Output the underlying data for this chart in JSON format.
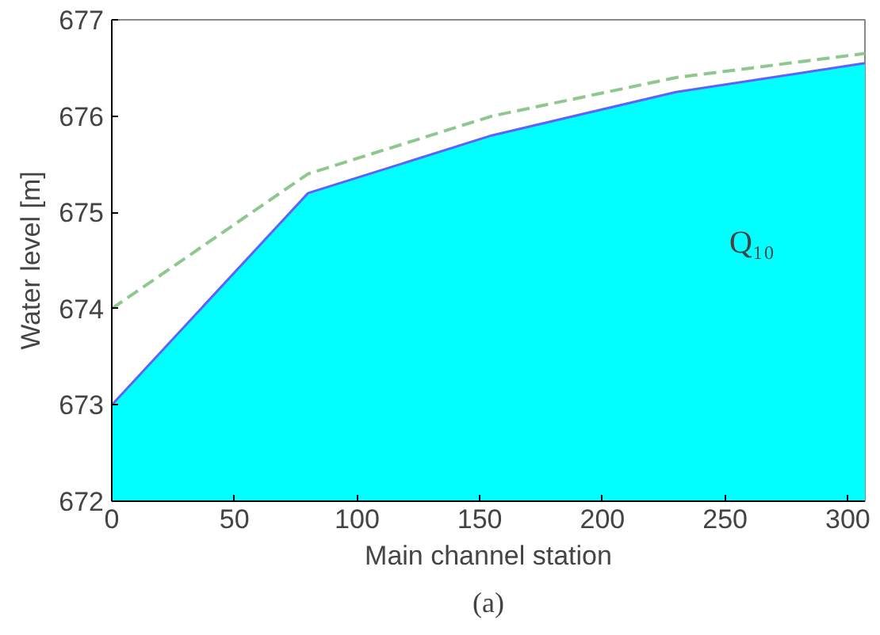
{
  "chart_data": {
    "type": "area",
    "xlabel": "Main channel station",
    "ylabel": "Water level [m]",
    "xlim": [
      0,
      307
    ],
    "ylim": [
      672,
      677
    ],
    "xticks": [
      0,
      50,
      100,
      150,
      200,
      250,
      300
    ],
    "yticks": [
      672,
      673,
      674,
      675,
      676,
      677
    ],
    "grid": false,
    "series": [
      {
        "color": "#00ffff",
        "x": [
          0,
          80,
          155,
          230,
          307
        ],
        "values": [
          673.0,
          675.2,
          675.8,
          676.25,
          676.55
        ]
      },
      {
        "type": "line",
        "color": "#8fc88f",
        "line_style": "dashed",
        "x": [
          0,
          80,
          155,
          230,
          307
        ],
        "values": [
          674.0,
          675.4,
          676.0,
          676.4,
          676.65
        ]
      }
    ],
    "annotations": [
      "Q₁₀",
      "(a)"
    ]
  }
}
